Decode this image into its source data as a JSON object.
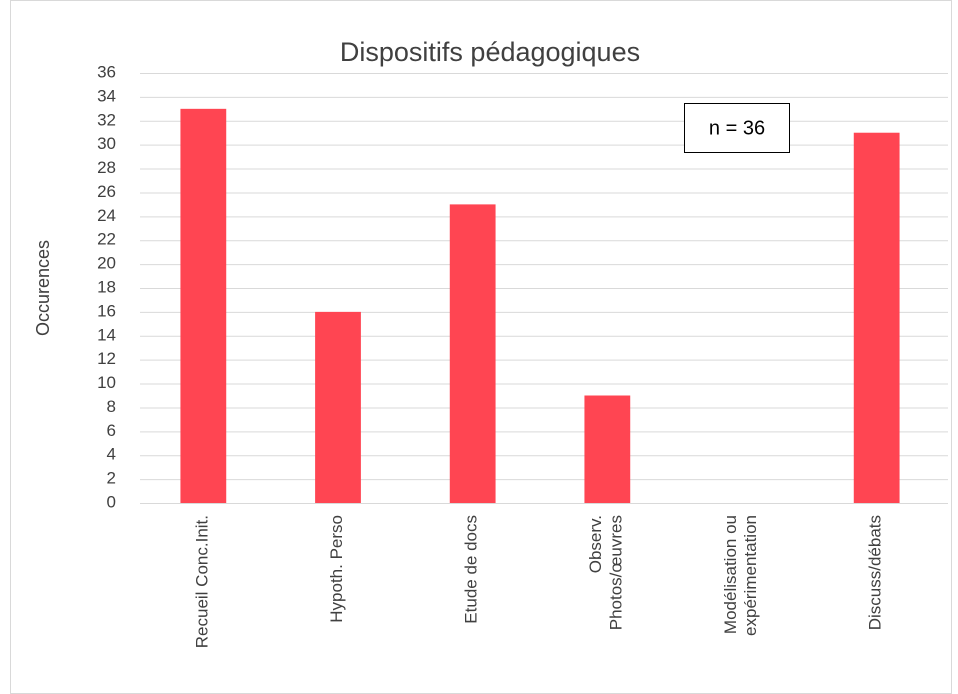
{
  "chart_data": {
    "type": "bar",
    "title": "Dispositifs pédagogiques",
    "y_label": "Occurences",
    "annotation": "n = 36",
    "categories": [
      "Recueil Conc.Init.",
      "Hypoth. Perso",
      "Etude de docs",
      "Observ.\nPhotos/œuvres",
      "Modélisation ou\nexpérimentation",
      "Discuss/débats"
    ],
    "values": [
      33,
      16,
      25,
      9,
      0,
      31
    ],
    "color": "#ff4552",
    "ylim": [
      0,
      36
    ],
    "yticks": [
      0,
      2,
      4,
      6,
      8,
      10,
      12,
      14,
      16,
      18,
      20,
      22,
      24,
      26,
      28,
      30,
      32,
      34,
      36
    ],
    "grid": true
  }
}
